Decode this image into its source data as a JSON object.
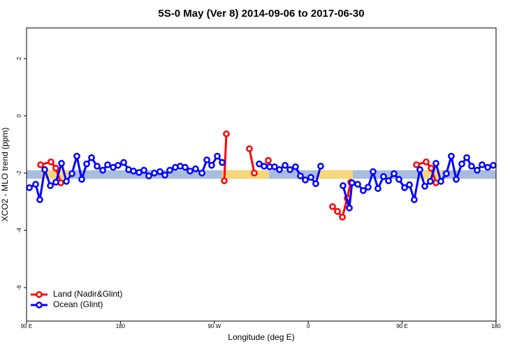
{
  "chart_data": {
    "type": "line",
    "title": "5S-0 May (Ver 8)   2014-09-06 to 2017-06-30",
    "x_label": "Longitude (deg E)",
    "y_label": "XCO2 - MLO trend (ppm)",
    "xlim": [
      90,
      540
    ],
    "xticks": [
      {
        "value": 90,
        "label": "90 E"
      },
      180,
      {
        "value": 270,
        "label": "90 W"
      },
      {
        "value": 360,
        "label": "0"
      },
      {
        "value": 450,
        "label": "90 E"
      },
      {
        "value": 540,
        "label": "180"
      }
    ],
    "ylim": [
      -7.17,
      3.07
    ],
    "yticks": [
      -6,
      -4,
      -2,
      0,
      2
    ],
    "band": [
      -2.2,
      -1.9
    ],
    "band_color": "#a7bddd",
    "land_spans": [
      [
        104.7,
        131.5
      ],
      [
        277.5,
        322.4
      ],
      [
        369.3,
        402.7
      ],
      [
        469.0,
        487.7
      ]
    ],
    "land_span_color": "#f6d77c",
    "legend": "bottom-left",
    "series": [
      {
        "name": "Land (Nadir&Glint)",
        "color": "#ff0000",
        "x": [
          103.4,
          113.4,
          118.1,
          122.8,
          null,
          279.5,
          281.5,
          null,
          303.6,
          308.3,
          null,
          321.7,
          null,
          383.3,
          388.0,
          392.7,
          397.4,
          400.7,
          null,
          463.7,
          473.0,
          477.8,
          482.4
        ],
        "values": [
          -1.71,
          -1.61,
          -1.83,
          -2.34,
          null,
          -2.27,
          -0.63,
          null,
          -1.15,
          -2.0,
          null,
          -1.56,
          null,
          -3.17,
          -3.34,
          -3.54,
          -2.88,
          -2.32,
          null,
          -1.71,
          -1.61,
          -1.83,
          -2.34
        ]
      },
      {
        "name": "Ocean (Glint)",
        "color": "#0000ff",
        "x": [
          92.7,
          98.7,
          102.7,
          107.4,
          112.8,
          118.1,
          123.5,
          128.2,
          133.5,
          138.2,
          142.9,
          147.6,
          152.3,
          157.6,
          163.0,
          167.7,
          173.0,
          177.7,
          183.1,
          187.8,
          192.5,
          197.8,
          202.5,
          207.2,
          212.5,
          217.9,
          222.6,
          227.3,
          232.6,
          237.3,
          242.0,
          246.7,
          252.0,
          258.1,
          262.8,
          267.4,
          272.8,
          277.5,
          null,
          313.0,
          317.7,
          323.0,
          327.7,
          332.4,
          337.8,
          342.5,
          347.8,
          352.5,
          357.2,
          362.5,
          367.2,
          371.9,
          null,
          393.3,
          399.4,
          402.0,
          407.4,
          412.7,
          417.4,
          422.1,
          426.8,
          432.2,
          436.9,
          442.2,
          446.9,
          452.3,
          457.0,
          461.6,
          467.0,
          471.7,
          477.0,
          482.4,
          487.1,
          492.4,
          497.1,
          501.8,
          507.2,
          511.9,
          516.5,
          521.9,
          526.6,
          532.0,
          537.3
        ],
        "values": [
          -2.51,
          -2.39,
          -2.93,
          -1.88,
          -2.44,
          -2.32,
          -1.66,
          -2.29,
          -2.02,
          -1.41,
          -2.22,
          -1.68,
          -1.46,
          -1.76,
          -1.9,
          -1.71,
          -1.8,
          -1.73,
          -1.63,
          -1.88,
          -1.93,
          -1.98,
          -1.9,
          -2.1,
          -2.0,
          -1.95,
          -2.07,
          -1.9,
          -1.8,
          -1.76,
          -1.8,
          -1.93,
          -1.85,
          -2.0,
          -1.54,
          -1.73,
          -1.41,
          -1.63,
          null,
          -1.68,
          -1.76,
          -1.78,
          -1.78,
          -1.88,
          -1.73,
          -1.88,
          -1.78,
          -2.1,
          -2.24,
          -2.15,
          -2.37,
          -1.76,
          null,
          -2.44,
          -3.22,
          -2.34,
          -2.39,
          -2.61,
          -2.49,
          -1.95,
          -2.54,
          -2.12,
          -2.27,
          -2.02,
          -2.22,
          -2.51,
          -2.41,
          -2.93,
          -1.88,
          -2.46,
          -2.29,
          -1.66,
          -2.29,
          -2.02,
          -1.41,
          -2.22,
          -1.68,
          -1.46,
          -1.76,
          -1.9,
          -1.71,
          -1.8,
          -1.73
        ]
      }
    ]
  }
}
